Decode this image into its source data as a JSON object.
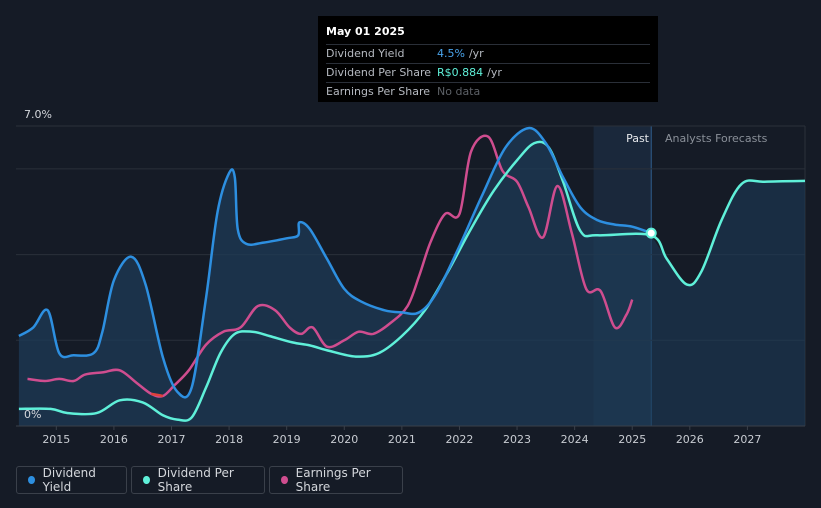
{
  "tooltip": {
    "date": "May 01 2025",
    "rows": [
      {
        "label": "Dividend Yield",
        "value": "4.5%",
        "unit": "/yr"
      },
      {
        "label": "Dividend Per Share",
        "value": "R$0.884",
        "unit": "/yr"
      },
      {
        "label": "Earnings Per Share",
        "value": "No data",
        "unit": ""
      }
    ]
  },
  "legend": [
    {
      "label": "Dividend Yield",
      "color": "#2d8fe0"
    },
    {
      "label": "Dividend Per Share",
      "color": "#5ff0d9"
    },
    {
      "label": "Earnings Per Share",
      "color": "#cf4d8f"
    }
  ],
  "regions": {
    "past": "Past",
    "forecast": "Analysts Forecasts"
  },
  "colors": {
    "yield": "#2d8fe0",
    "dps": "#5ff0d9",
    "eps": "#cf4d8f",
    "eps_negative": "#e0413c",
    "background": "#151b26",
    "past_band": "#1b2a3e",
    "grid": "#2a303a"
  },
  "chart_data": {
    "type": "line",
    "x_axis": {
      "min": 2014.3,
      "max": 2028.0,
      "ticks": [
        2015,
        2016,
        2017,
        2018,
        2019,
        2020,
        2021,
        2022,
        2023,
        2024,
        2025,
        2026,
        2027
      ]
    },
    "y_axis": {
      "min": 0,
      "max": 7.0,
      "tick_labels": [
        {
          "value": 0,
          "label": "0%"
        },
        {
          "value": 7.0,
          "label": "7.0%"
        }
      ],
      "gridlines": [
        0,
        2.0,
        4.0,
        6.0,
        7.0
      ]
    },
    "past_region": {
      "from": 2024.33,
      "to": 2025.33
    },
    "marker": {
      "x": 2025.33,
      "y": 4.5
    },
    "series": [
      {
        "name": "Dividend Yield",
        "points": [
          [
            2014.35,
            2.1
          ],
          [
            2014.6,
            2.3
          ],
          [
            2014.85,
            2.7
          ],
          [
            2015.05,
            1.7
          ],
          [
            2015.3,
            1.65
          ],
          [
            2015.65,
            1.7
          ],
          [
            2015.8,
            2.2
          ],
          [
            2016.0,
            3.4
          ],
          [
            2016.3,
            3.95
          ],
          [
            2016.55,
            3.3
          ],
          [
            2016.85,
            1.6
          ],
          [
            2017.1,
            0.8
          ],
          [
            2017.35,
            0.9
          ],
          [
            2017.6,
            3.0
          ],
          [
            2017.8,
            5.0
          ],
          [
            2018.0,
            5.9
          ],
          [
            2018.1,
            5.8
          ],
          [
            2018.15,
            4.6
          ],
          [
            2018.3,
            4.25
          ],
          [
            2018.6,
            4.28
          ],
          [
            2019.0,
            4.38
          ],
          [
            2019.2,
            4.45
          ],
          [
            2019.22,
            4.75
          ],
          [
            2019.4,
            4.6
          ],
          [
            2019.7,
            3.9
          ],
          [
            2020.0,
            3.2
          ],
          [
            2020.3,
            2.9
          ],
          [
            2020.7,
            2.7
          ],
          [
            2021.0,
            2.65
          ],
          [
            2021.3,
            2.65
          ],
          [
            2021.6,
            3.1
          ],
          [
            2022.0,
            4.2
          ],
          [
            2022.4,
            5.4
          ],
          [
            2022.8,
            6.5
          ],
          [
            2023.2,
            6.95
          ],
          [
            2023.5,
            6.6
          ],
          [
            2023.8,
            5.8
          ],
          [
            2024.1,
            5.1
          ],
          [
            2024.4,
            4.8
          ],
          [
            2024.7,
            4.7
          ],
          [
            2025.0,
            4.65
          ],
          [
            2025.33,
            4.5
          ]
        ]
      },
      {
        "name": "Dividend Per Share",
        "points": [
          [
            2014.35,
            0.4
          ],
          [
            2014.9,
            0.4
          ],
          [
            2015.2,
            0.3
          ],
          [
            2015.7,
            0.3
          ],
          [
            2016.1,
            0.6
          ],
          [
            2016.5,
            0.55
          ],
          [
            2016.85,
            0.25
          ],
          [
            2017.1,
            0.15
          ],
          [
            2017.35,
            0.2
          ],
          [
            2017.6,
            0.9
          ],
          [
            2017.85,
            1.7
          ],
          [
            2018.1,
            2.15
          ],
          [
            2018.4,
            2.2
          ],
          [
            2018.7,
            2.1
          ],
          [
            2019.1,
            1.95
          ],
          [
            2019.4,
            1.88
          ],
          [
            2019.75,
            1.75
          ],
          [
            2020.2,
            1.62
          ],
          [
            2020.6,
            1.7
          ],
          [
            2021.0,
            2.1
          ],
          [
            2021.4,
            2.7
          ],
          [
            2021.8,
            3.6
          ],
          [
            2022.2,
            4.6
          ],
          [
            2022.6,
            5.5
          ],
          [
            2023.0,
            6.2
          ],
          [
            2023.3,
            6.6
          ],
          [
            2023.55,
            6.5
          ],
          [
            2023.8,
            5.7
          ],
          [
            2024.1,
            4.55
          ],
          [
            2024.4,
            4.45
          ],
          [
            2025.33,
            4.45
          ],
          [
            2025.6,
            3.9
          ],
          [
            2025.95,
            3.3
          ],
          [
            2026.2,
            3.6
          ],
          [
            2026.55,
            4.8
          ],
          [
            2026.9,
            5.65
          ],
          [
            2027.3,
            5.7
          ],
          [
            2028.0,
            5.72
          ]
        ]
      },
      {
        "name": "Earnings Per Share",
        "points": [
          [
            2014.5,
            1.1
          ],
          [
            2014.8,
            1.05
          ],
          [
            2015.05,
            1.1
          ],
          [
            2015.3,
            1.05
          ],
          [
            2015.5,
            1.2
          ],
          [
            2015.8,
            1.25
          ],
          [
            2016.1,
            1.3
          ],
          [
            2016.4,
            1.0
          ],
          [
            2016.65,
            0.75
          ],
          [
            2016.85,
            0.7
          ],
          [
            2017.05,
            0.95
          ],
          [
            2017.3,
            1.3
          ],
          [
            2017.6,
            1.9
          ],
          [
            2017.9,
            2.2
          ],
          [
            2018.2,
            2.3
          ],
          [
            2018.5,
            2.8
          ],
          [
            2018.8,
            2.7
          ],
          [
            2019.05,
            2.3
          ],
          [
            2019.25,
            2.15
          ],
          [
            2019.45,
            2.3
          ],
          [
            2019.7,
            1.85
          ],
          [
            2020.0,
            2.0
          ],
          [
            2020.25,
            2.2
          ],
          [
            2020.5,
            2.15
          ],
          [
            2020.8,
            2.4
          ],
          [
            2021.1,
            2.8
          ],
          [
            2021.3,
            3.5
          ],
          [
            2021.5,
            4.3
          ],
          [
            2021.75,
            4.95
          ],
          [
            2022.0,
            4.95
          ],
          [
            2022.2,
            6.4
          ],
          [
            2022.5,
            6.75
          ],
          [
            2022.75,
            5.95
          ],
          [
            2023.0,
            5.7
          ],
          [
            2023.2,
            5.1
          ],
          [
            2023.45,
            4.4
          ],
          [
            2023.7,
            5.6
          ],
          [
            2023.95,
            4.5
          ],
          [
            2024.2,
            3.2
          ],
          [
            2024.45,
            3.15
          ],
          [
            2024.7,
            2.3
          ],
          [
            2024.9,
            2.6
          ],
          [
            2025.0,
            2.95
          ]
        ]
      }
    ]
  }
}
